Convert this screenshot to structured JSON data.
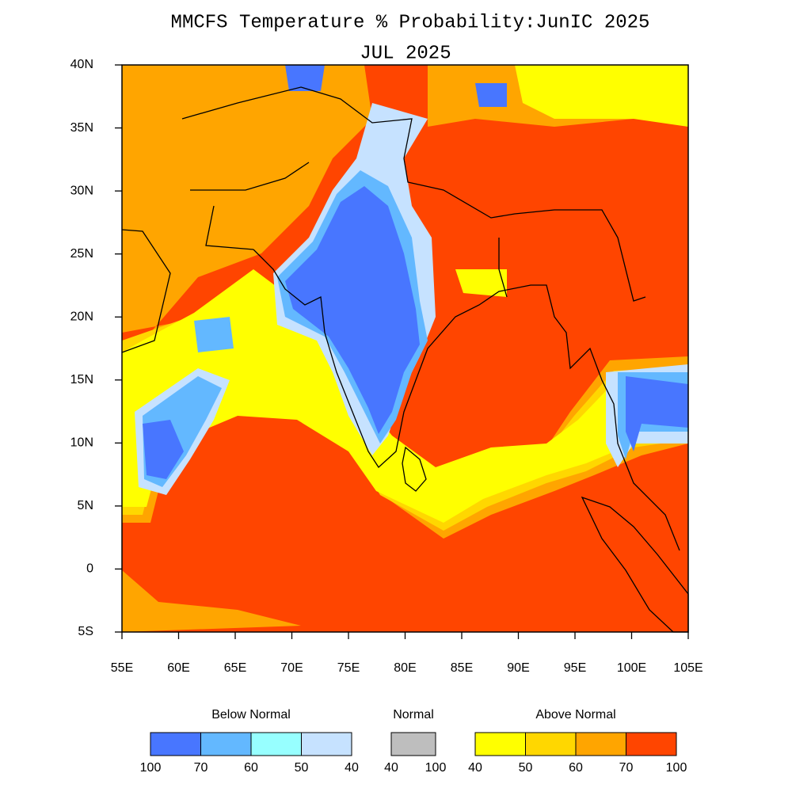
{
  "map": {
    "title": "MMCFS Temperature % Probability:JunIC 2025",
    "subtitle": "JUL 2025",
    "xlim": [
      55,
      105
    ],
    "ylim": [
      -5,
      40
    ],
    "xticks": [
      {
        "value": 55,
        "label": "55E"
      },
      {
        "value": 60,
        "label": "60E"
      },
      {
        "value": 65,
        "label": "65E"
      },
      {
        "value": 70,
        "label": "70E"
      },
      {
        "value": 75,
        "label": "75E"
      },
      {
        "value": 80,
        "label": "80E"
      },
      {
        "value": 85,
        "label": "85E"
      },
      {
        "value": 90,
        "label": "90E"
      },
      {
        "value": 95,
        "label": "95E"
      },
      {
        "value": 100,
        "label": "100E"
      },
      {
        "value": 105,
        "label": "105E"
      }
    ],
    "yticks": [
      {
        "value": -5,
        "label": "5S"
      },
      {
        "value": 0,
        "label": "0"
      },
      {
        "value": 5,
        "label": "5N"
      },
      {
        "value": 10,
        "label": "10N"
      },
      {
        "value": 15,
        "label": "15N"
      },
      {
        "value": 20,
        "label": "20N"
      },
      {
        "value": 25,
        "label": "25N"
      },
      {
        "value": 30,
        "label": "30N"
      },
      {
        "value": 35,
        "label": "35N"
      },
      {
        "value": 40,
        "label": "40N"
      }
    ],
    "legend": [
      {
        "title": "Below Normal",
        "colors": [
          "#4876ff",
          "#63b8ff",
          "#97ffff",
          "#c6e2ff"
        ],
        "labels": [
          100,
          70,
          60,
          50,
          40
        ]
      },
      {
        "title": "Normal",
        "colors": [
          "#bebebe"
        ],
        "labels": [
          40,
          100
        ]
      },
      {
        "title": "Above Normal",
        "colors": [
          "#ffff00",
          "#ffd700",
          "#ffa500",
          "#ff4500"
        ],
        "labels": [
          40,
          50,
          60,
          70,
          100
        ]
      }
    ]
  }
}
